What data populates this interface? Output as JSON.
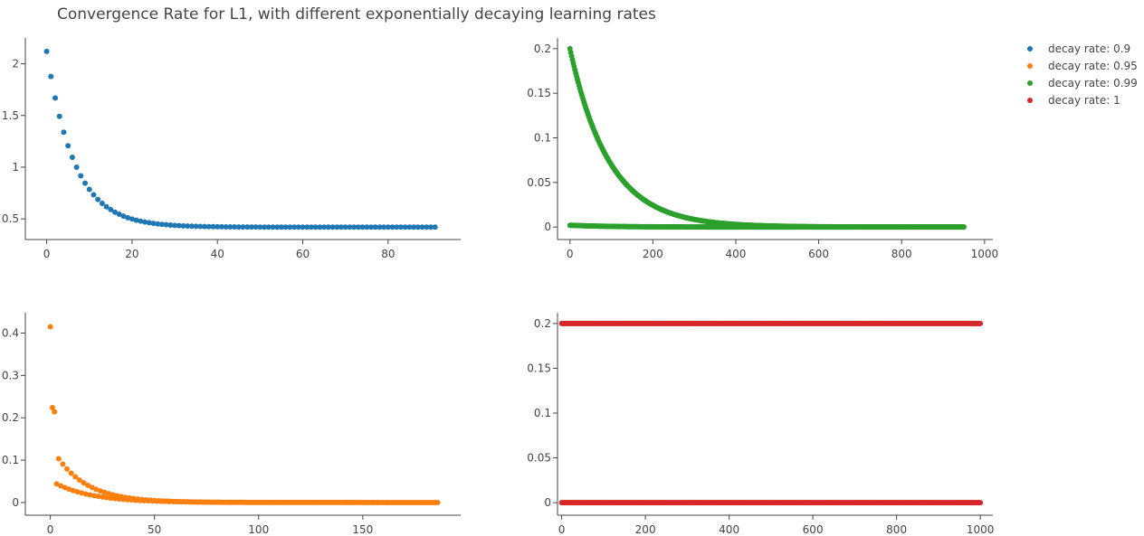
{
  "title": "Convergence Rate for L1, with different exponentially decaying learning rates",
  "legend": {
    "placement": "top-right",
    "items": [
      {
        "label": "decay rate: 0.9",
        "color": "#1f77b4"
      },
      {
        "label": "decay rate: 0.95",
        "color": "#ff7f0e"
      },
      {
        "label": "decay rate: 0.99",
        "color": "#2ca02c"
      },
      {
        "label": "decay rate: 1",
        "color": "#d62728"
      }
    ]
  },
  "chart_data": [
    {
      "type": "scatter",
      "panel": "top-left",
      "series_name": "decay rate: 0.9",
      "color": "#1f77b4",
      "xlim": [
        -5,
        97
      ],
      "ylim": [
        0.3,
        2.25
      ],
      "xticks": [
        0,
        20,
        40,
        60,
        80
      ],
      "xtick_labels": [
        "0",
        "20",
        "40",
        "60",
        "80"
      ],
      "yticks": [
        0.5,
        1,
        1.5,
        2
      ],
      "ytick_labels": [
        "0.5",
        "1",
        "1.5",
        "2"
      ],
      "grid": false,
      "curves": [
        {
          "formula": "0.42 + 1.70 * exp(-x/6.5)",
          "x_start": 0,
          "x_end": 91,
          "x_step": 1
        }
      ]
    },
    {
      "type": "scatter",
      "panel": "top-right",
      "series_name": "decay rate: 0.99",
      "color": "#2ca02c",
      "xlim": [
        -30,
        1020
      ],
      "ylim": [
        -0.014,
        0.212
      ],
      "xticks": [
        0,
        200,
        400,
        600,
        800,
        1000
      ],
      "xtick_labels": [
        "0",
        "200",
        "400",
        "600",
        "800",
        "1000"
      ],
      "yticks": [
        0,
        0.05,
        0.1,
        0.15,
        0.2
      ],
      "ytick_labels": [
        "0",
        "0.05",
        "0.1",
        "0.15",
        "0.2"
      ],
      "grid": false,
      "curves": [
        {
          "formula": "0.2 * exp(-x/95)",
          "x_start": 0,
          "x_end": 950,
          "x_step": 2
        },
        {
          "formula": "0.002 * exp(-x/100)",
          "x_start": 0,
          "x_end": 950,
          "x_step": 2
        }
      ]
    },
    {
      "type": "scatter",
      "panel": "bottom-left",
      "series_name": "decay rate: 0.95",
      "color": "#ff7f0e",
      "xlim": [
        -12,
        197
      ],
      "ylim": [
        -0.03,
        0.448
      ],
      "xticks": [
        0,
        50,
        100,
        150
      ],
      "xtick_labels": [
        "0",
        "50",
        "100",
        "150"
      ],
      "yticks": [
        0,
        0.1,
        0.2,
        0.3,
        0.4
      ],
      "ytick_labels": [
        "0",
        "0.1",
        "0.2",
        "0.3",
        "0.4"
      ],
      "grid": false,
      "points": [
        {
          "x": 0,
          "y": 0.415
        },
        {
          "x": 1,
          "y": 0.224
        },
        {
          "x": 2,
          "y": 0.214
        }
      ],
      "curves": [
        {
          "formula": "0.135 * exp(-x/15)",
          "x_start": 4,
          "x_end": 186,
          "x_step": 2
        },
        {
          "formula": "0.052 * exp(-x/18)",
          "x_start": 3,
          "x_end": 186,
          "x_step": 2
        }
      ]
    },
    {
      "type": "scatter",
      "panel": "bottom-right",
      "series_name": "decay rate: 1",
      "color": "#d62728",
      "xlim": [
        -10,
        1030
      ],
      "ylim": [
        -0.014,
        0.212
      ],
      "xticks": [
        0,
        200,
        400,
        600,
        800,
        1000
      ],
      "xtick_labels": [
        "0",
        "200",
        "400",
        "600",
        "800",
        "1000"
      ],
      "yticks": [
        0,
        0.05,
        0.1,
        0.15,
        0.2
      ],
      "ytick_labels": [
        "0",
        "0.05",
        "0.1",
        "0.15",
        "0.2"
      ],
      "grid": false,
      "curves": [
        {
          "formula": "0.2",
          "x_start": 0,
          "x_end": 1000,
          "x_step": 2
        },
        {
          "formula": "0",
          "x_start": 0,
          "x_end": 1000,
          "x_step": 2
        }
      ]
    }
  ]
}
